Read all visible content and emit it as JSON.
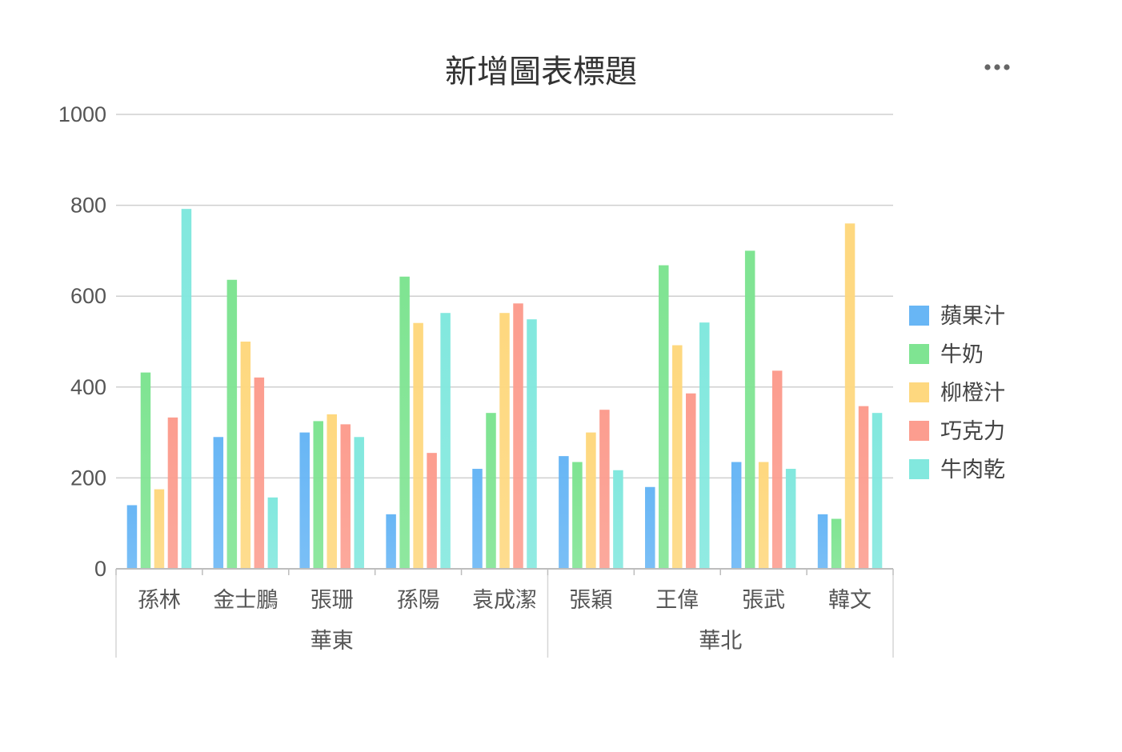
{
  "chart_data": {
    "type": "bar",
    "title": "新增圖表標題",
    "xlabel": "",
    "ylabel": "",
    "ylim": [
      0,
      1000
    ],
    "yticks": [
      0,
      200,
      400,
      600,
      800,
      1000
    ],
    "grid": true,
    "legend_position": "right",
    "groups": [
      {
        "name": "華東",
        "categories": [
          "孫林",
          "金士鵬",
          "張珊",
          "孫陽",
          "袁成潔"
        ]
      },
      {
        "name": "華北",
        "categories": [
          "張穎",
          "王偉",
          "張武",
          "韓文"
        ]
      }
    ],
    "categories": [
      "孫林",
      "金士鵬",
      "張珊",
      "孫陽",
      "袁成潔",
      "張穎",
      "王偉",
      "張武",
      "韓文"
    ],
    "series": [
      {
        "name": "蘋果汁",
        "color": "#68b6f5",
        "values": [
          140,
          290,
          300,
          120,
          220,
          248,
          180,
          235,
          120
        ]
      },
      {
        "name": "牛奶",
        "color": "#7fe492",
        "values": [
          432,
          636,
          325,
          643,
          343,
          235,
          668,
          700,
          110
        ]
      },
      {
        "name": "柳橙汁",
        "color": "#fed87f",
        "values": [
          175,
          500,
          340,
          541,
          563,
          300,
          492,
          235,
          760
        ]
      },
      {
        "name": "巧克力",
        "color": "#fc9d8f",
        "values": [
          333,
          421,
          318,
          255,
          584,
          350,
          386,
          436,
          358
        ]
      },
      {
        "name": "牛肉乾",
        "color": "#82e8de",
        "values": [
          792,
          157,
          290,
          563,
          549,
          217,
          542,
          220,
          343
        ]
      }
    ]
  },
  "menu": {
    "icon": "more-horizontal-icon"
  }
}
